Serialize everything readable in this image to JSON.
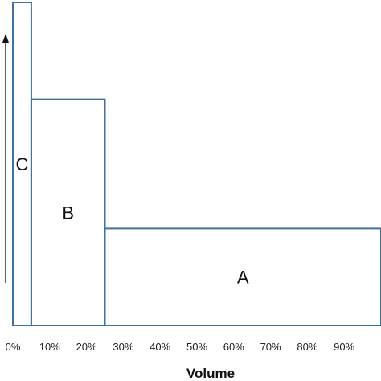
{
  "chart_data": {
    "type": "bar",
    "variant": "variable-width",
    "xlabel": "Volume",
    "ylabel": "",
    "x_ticks": [
      "0%",
      "10%",
      "20%",
      "30%",
      "40%",
      "50%",
      "60%",
      "70%",
      "80%",
      "90%"
    ],
    "xlim": [
      0,
      100
    ],
    "ylim": [
      0,
      100
    ],
    "grid": false,
    "y_axis_arrow": true,
    "y_tick_labels": false,
    "series": [
      {
        "label": "C",
        "x_start": 0,
        "x_end": 5,
        "value": 100
      },
      {
        "label": "B",
        "x_start": 5,
        "x_end": 25,
        "value": 70
      },
      {
        "label": "A",
        "x_start": 25,
        "x_end": 100,
        "value": 30
      }
    ],
    "colors": {
      "bar_outline": "#41719c",
      "axis": "#bfbfbf",
      "arrow": "#111111"
    }
  }
}
